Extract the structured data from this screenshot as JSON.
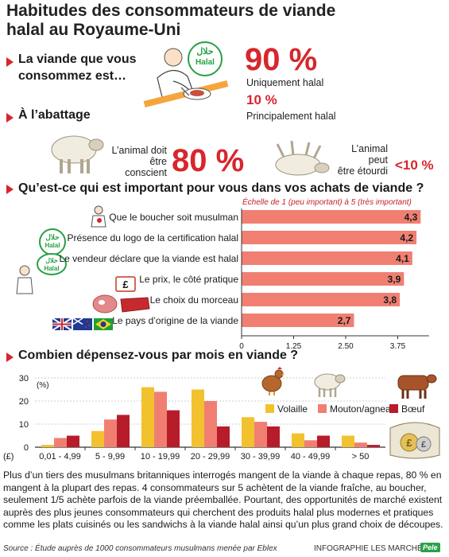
{
  "title": "Habitudes des consommateurs de viande halal au Royaume-Uni",
  "colors": {
    "accent": "#d7262c",
    "bar_fill": "#f07f72",
    "halal_green": "#27a045",
    "volaille": "#f2c12e",
    "mouton": "#f07f72",
    "boeuf": "#b71c2a"
  },
  "section1": {
    "heading": "La viande que vous consommez est…",
    "badge_arabic": "حلال",
    "badge_label": "Halal",
    "stat1_value": "90 %",
    "stat1_label": "Uniquement halal",
    "stat2_value": "10 %",
    "stat2_label": "Principalement halal",
    "icon": "person-eating-icon"
  },
  "section2": {
    "heading": "À l’abattage",
    "left_label_1": "L’animal doit",
    "left_label_2": "être conscient",
    "left_value": "80 %",
    "right_label_1": "L’animal peut",
    "right_label_2": "être étourdi",
    "right_value": "<10 %",
    "icons": [
      "sheep-icon",
      "stunned-sheep-icon"
    ]
  },
  "section3": {
    "heading": "Qu’est-ce qui est important pour vous dans vos achats de viande ?",
    "scale_note": "Échelle de 1 (peu important) à 5 (très important)",
    "icons": [
      "muslim-butcher-icon",
      "halal-logo-icon",
      "halal-butcher-speech-icon",
      "pound-price-icon",
      "meat-cuts-icon",
      "country-flags-icon"
    ]
  },
  "section4": {
    "heading": "Combien dépensez-vous par mois en viande ?",
    "icons": [
      "chicken-icon",
      "sheep-icon",
      "cow-icon",
      "wallet-pound-coins-icon"
    ]
  },
  "chart_data": [
    {
      "type": "bar",
      "orientation": "horizontal",
      "categories": [
        "Que le boucher soit musulman",
        "Présence du logo de la certification halal",
        "Le vendeur déclare que la viande est halal",
        "Le prix, le côté pratique",
        "Le choix du morceau",
        "Le pays d’origine de la viande"
      ],
      "values": [
        4.3,
        4.2,
        4.1,
        3.9,
        3.8,
        2.7
      ],
      "value_labels": [
        "4,3",
        "4,2",
        "4,1",
        "3,9",
        "3,8",
        "2,7"
      ],
      "xlim": [
        0,
        4.5
      ],
      "xticks": [
        0,
        1.25,
        2.5,
        3.75
      ],
      "xtick_labels": [
        "0",
        "1,25",
        "2,50",
        "3,75"
      ],
      "grid": false
    },
    {
      "type": "bar",
      "orientation": "vertical",
      "categories": [
        "0,01 - 4,99",
        "5 - 9,99",
        "10 - 19,99",
        "20 - 29,99",
        "30 - 39,99",
        "40 - 49,99",
        "> 50"
      ],
      "x_unit": "(£)",
      "y_unit": "(%)",
      "ylim": [
        0,
        30
      ],
      "yticks": [
        0,
        10,
        20,
        30
      ],
      "series": [
        {
          "name": "Volaille",
          "values": [
            1,
            7,
            26,
            25,
            13,
            6,
            5
          ]
        },
        {
          "name": "Mouton/agneau",
          "values": [
            4,
            12,
            24,
            20,
            11,
            3,
            2
          ]
        },
        {
          "name": "Bœuf",
          "values": [
            5,
            14,
            16,
            9,
            9,
            5,
            1
          ]
        }
      ],
      "legend": "inside right",
      "grid": true
    }
  ],
  "paragraph": "Plus d’un tiers des musulmans britanniques interrogés mangent de la viande à chaque repas, 80 % en mangent à la plupart des repas. 4 consommateurs sur 5 achètent de la viande fraîche, au boucher, seulement 1/5 achète parfois de la viande préemballée. Pourtant, des opportunités de marché existent auprès des plus jeunes consommateurs qui cherchent des produits halal plus modernes et pratiques comme les plats cuisinés ou les sandwichs à la viande halal ainsi qu’un plus grand choix de découpes.",
  "source": "Source : Étude auprès de 1000 consommateurs musulmans menée par Eblex",
  "credit": "INFOGRAPHIE LES MARCHÉS",
  "credit_logo": "Pele"
}
